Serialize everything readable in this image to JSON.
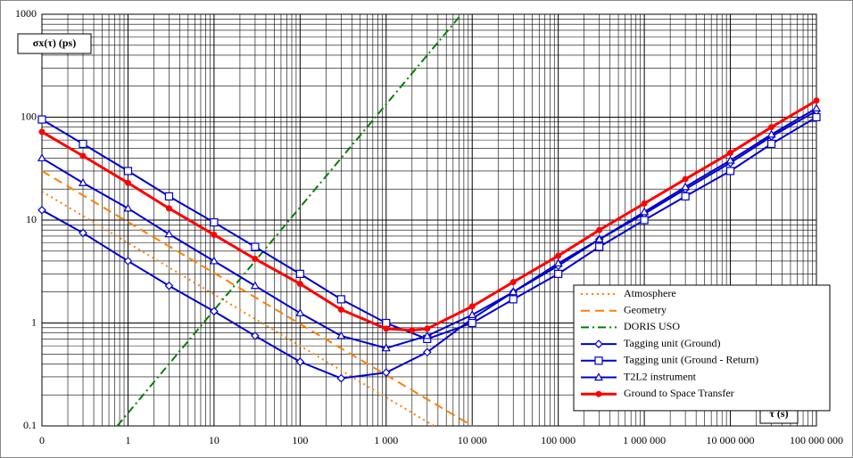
{
  "chart_data": {
    "type": "line",
    "x_label": "τ (s)",
    "y_label": "σx(τ) (ps)",
    "xscale": "log",
    "yscale": "log",
    "grid": true,
    "minor_grid": true,
    "legend_position": "lower right",
    "xlim": [
      0.1,
      100000000
    ],
    "ylim": [
      0.1,
      1000
    ],
    "xticks": [
      {
        "value": 0.1,
        "label": "0"
      },
      1,
      10,
      100,
      {
        "value": 1000,
        "label": "1 000"
      },
      {
        "value": 10000,
        "label": "10 000"
      },
      {
        "value": 100000,
        "label": "100 000"
      },
      {
        "value": 1000000,
        "label": "1 000 000"
      },
      {
        "value": 10000000,
        "label": "10 000 000"
      },
      {
        "value": 100000000,
        "label": "100 000 000"
      }
    ],
    "yticks": [
      0.1,
      1,
      10,
      100,
      1000
    ],
    "series": [
      {
        "name": "Atmosphere",
        "color": "#ff7f00",
        "dash": "dot",
        "marker": "none",
        "x": [
          0.1,
          3600
        ],
        "values": [
          19,
          0.1
        ]
      },
      {
        "name": "Geometry",
        "color": "#ff7f00",
        "dash": "dash",
        "marker": "none",
        "x": [
          0.1,
          10000
        ],
        "values": [
          30,
          0.1
        ]
      },
      {
        "name": "DORIS USO",
        "color": "#008000",
        "dash": "dashdot",
        "marker": "none",
        "x": [
          0.75,
          7500
        ],
        "values": [
          0.1,
          1000
        ]
      },
      {
        "name": "Tagging unit (Ground)",
        "color": "#0000cc",
        "dash": "solid",
        "marker": "diamond",
        "x": [
          0.1,
          0.3,
          1,
          3,
          10,
          30,
          100,
          300,
          1000,
          3000,
          10000,
          30000,
          100000,
          300000,
          1000000,
          3000000,
          10000000,
          30000000,
          100000000
        ],
        "values": [
          12.5,
          7.5,
          4,
          2.3,
          1.3,
          0.75,
          0.42,
          0.29,
          0.33,
          0.52,
          1.1,
          2,
          3.6,
          6.5,
          11.5,
          20,
          36,
          65,
          115
        ]
      },
      {
        "name": "Tagging unit (Ground - Return)",
        "color": "#0000cc",
        "dash": "solid",
        "marker": "square",
        "x": [
          0.1,
          0.3,
          1,
          3,
          10,
          30,
          100,
          300,
          1000,
          3000,
          10000,
          30000,
          100000,
          300000,
          1000000,
          3000000,
          10000000,
          30000000,
          100000000
        ],
        "values": [
          95,
          55,
          30,
          17,
          9.5,
          5.5,
          3,
          1.7,
          1,
          0.7,
          1,
          1.7,
          3,
          5.5,
          10,
          17,
          30,
          55,
          100
        ]
      },
      {
        "name": "T2L2 instrument",
        "color": "#0000cc",
        "dash": "solid",
        "marker": "triangle",
        "x": [
          0.1,
          0.3,
          1,
          3,
          10,
          30,
          100,
          300,
          1000,
          3000,
          10000,
          30000,
          100000,
          300000,
          1000000,
          3000000,
          10000000,
          30000000,
          100000000
        ],
        "values": [
          40,
          23,
          13,
          7.3,
          4,
          2.3,
          1.25,
          0.75,
          0.57,
          0.75,
          1.2,
          2,
          3.8,
          6.5,
          12,
          21,
          38,
          68,
          122
        ]
      },
      {
        "name": "Ground to Space Transfer",
        "color": "#ff0000",
        "dash": "solid",
        "marker": "circle",
        "x": [
          0.1,
          0.3,
          1,
          3,
          10,
          30,
          100,
          300,
          1000,
          2000,
          3000,
          10000,
          30000,
          100000,
          300000,
          1000000,
          3000000,
          10000000,
          30000000,
          100000000
        ],
        "values": [
          72,
          42,
          23,
          13,
          7.2,
          4.2,
          2.4,
          1.35,
          0.88,
          0.85,
          0.88,
          1.45,
          2.5,
          4.5,
          8,
          14.5,
          25,
          45,
          80,
          145
        ]
      }
    ]
  }
}
